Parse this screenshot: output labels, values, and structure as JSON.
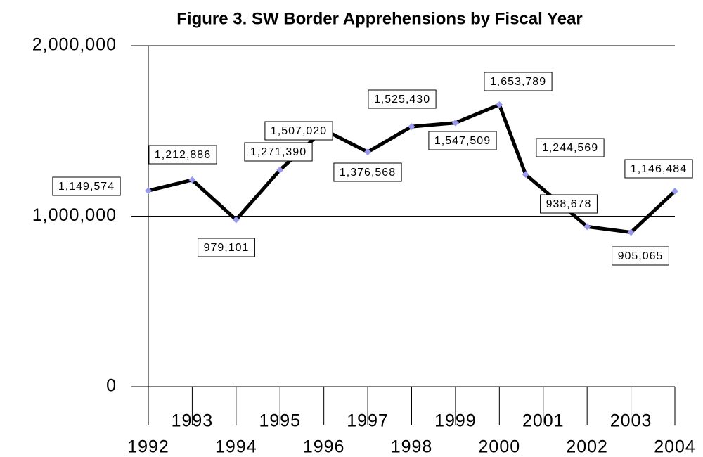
{
  "chart_data": {
    "type": "line",
    "title": "Figure 3.  SW Border Apprehensions by Fiscal Year",
    "x": [
      1992,
      1993,
      1994,
      1995,
      1996,
      1997,
      1998,
      1999,
      2000,
      2000.6,
      2002,
      2003,
      2004
    ],
    "values": [
      1149574,
      1212886,
      979101,
      1271390,
      1507020,
      1376568,
      1525430,
      1547509,
      1653789,
      1244569,
      938678,
      905065,
      1146484
    ],
    "value_labels": [
      "1,149,574",
      "1,212,886",
      "979,101",
      "1,271,390",
      "1,507,020",
      "1,376,568",
      "1,525,430",
      "1,547,509",
      "1,653,789",
      "1,244,569",
      "938,678",
      "905,065",
      "1,146,484"
    ],
    "color": "#000000",
    "marker_color": "#9999ee",
    "xlim": [
      1992,
      2004
    ],
    "xticks": [
      1992,
      1993,
      1994,
      1995,
      1996,
      1997,
      1998,
      1999,
      2000,
      2001,
      2002,
      2003,
      2004
    ],
    "ylim": [
      0,
      2000000
    ],
    "yticks": [
      0,
      {
        "value": 1000000,
        "label": "1,000,000"
      },
      {
        "value": 2000000,
        "label": "2,000,000"
      }
    ],
    "grid": true
  }
}
